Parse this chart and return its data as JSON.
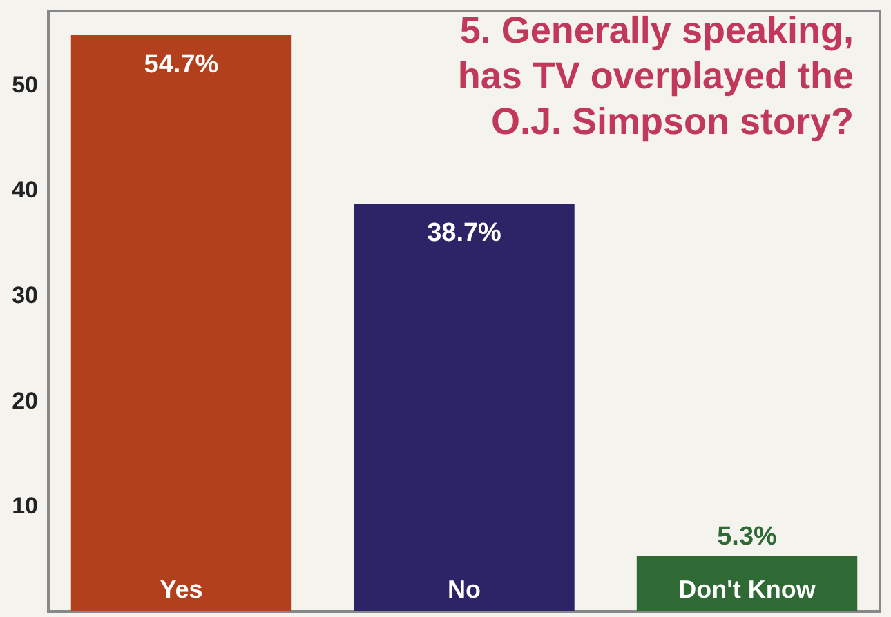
{
  "chart_data": {
    "type": "bar",
    "title": "5. Generally speaking, has TV overplayed the O.J. Simpson story?",
    "categories": [
      "Yes",
      "No",
      "Don't Know"
    ],
    "values": [
      54.7,
      38.7,
      5.3
    ],
    "colors": [
      "#b3401c",
      "#2c2466",
      "#2f6a34"
    ],
    "value_labels": [
      "54.7%",
      "38.7%",
      "5.3%"
    ],
    "ylim": [
      0,
      57
    ],
    "yticks": [
      10,
      20,
      30,
      40,
      50
    ],
    "grid": false
  }
}
